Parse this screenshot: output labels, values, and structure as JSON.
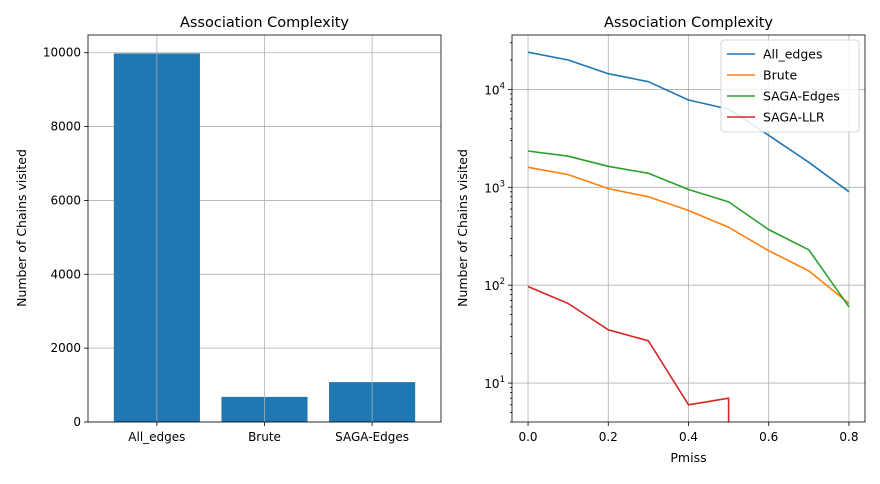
{
  "chart_data": [
    {
      "type": "bar",
      "title": "Association Complexity",
      "xlabel": "",
      "ylabel": "Number of Chains visited",
      "categories": [
        "All_edges",
        "Brute",
        "SAGA-Edges"
      ],
      "values": [
        9980,
        680,
        1080
      ],
      "ylim": [
        0,
        10480
      ],
      "yticks": [
        0,
        2000,
        4000,
        6000,
        8000,
        10000
      ],
      "ytick_labels": [
        "0",
        "2000",
        "4000",
        "6000",
        "8000",
        "10000"
      ],
      "color": "#1f77b4",
      "grid": true
    },
    {
      "type": "line",
      "title": "Association Complexity",
      "xlabel": "Pmiss",
      "ylabel": "Number of Chains visited",
      "yscale": "log",
      "xlim": [
        -0.04,
        0.84
      ],
      "ylim": [
        4,
        36000
      ],
      "xticks": [
        0.0,
        0.2,
        0.4,
        0.6,
        0.8
      ],
      "xtick_labels": [
        "0.0",
        "0.2",
        "0.4",
        "0.6",
        "0.8"
      ],
      "yticks": [
        10,
        100,
        1000,
        10000
      ],
      "ytick_labels": [
        {
          "base": "10",
          "exp": "1"
        },
        {
          "base": "10",
          "exp": "2"
        },
        {
          "base": "10",
          "exp": "3"
        },
        {
          "base": "10",
          "exp": "4"
        }
      ],
      "grid": true,
      "legend_position": "top-right",
      "x": [
        0.0,
        0.1,
        0.2,
        0.3,
        0.4,
        0.5,
        0.6,
        0.7,
        0.8
      ],
      "series": [
        {
          "name": "All_edges",
          "color": "#1f77b4",
          "values": [
            24000,
            20000,
            14500,
            12000,
            7800,
            6300,
            3400,
            1800,
            900
          ]
        },
        {
          "name": "Brute",
          "color": "#ff7f0e",
          "values": [
            1600,
            1350,
            970,
            800,
            580,
            390,
            225,
            140,
            65
          ]
        },
        {
          "name": "SAGA-Edges",
          "color": "#2ca02c",
          "values": [
            2350,
            2080,
            1640,
            1390,
            950,
            710,
            370,
            230,
            60
          ]
        },
        {
          "name": "SAGA-LLR",
          "color": "#d62728",
          "values": [
            97,
            65,
            35,
            27,
            6,
            7,
            null,
            null,
            null
          ],
          "drops_to_zero_after_x": 0.5
        }
      ]
    }
  ]
}
